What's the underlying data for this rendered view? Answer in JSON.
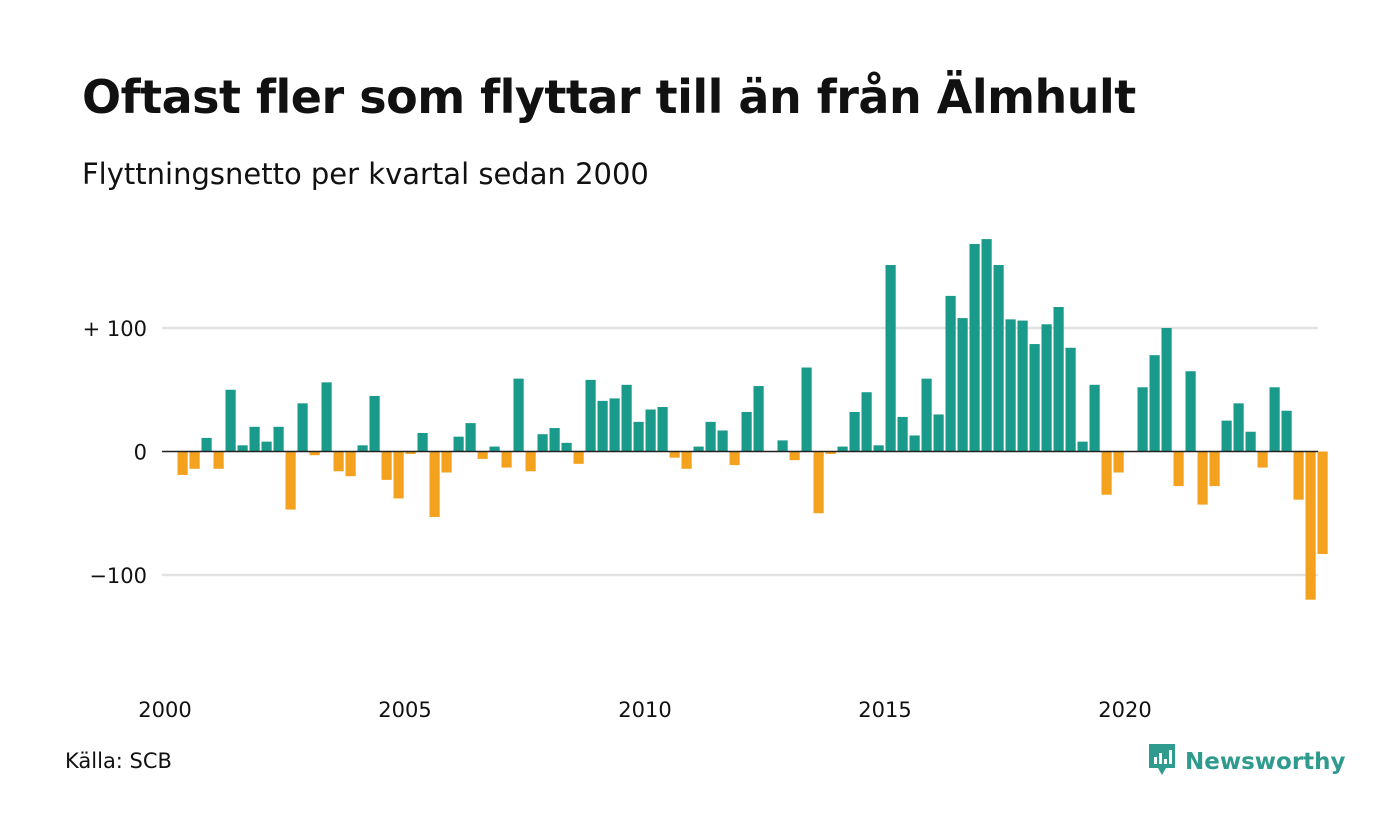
{
  "title": "Oftast fler som flyttar till än från Älmhult",
  "subtitle": "Flyttningsnetto per kvartal sedan 2000",
  "source": "Källa: SCB",
  "brand": {
    "name": "Newsworthy",
    "icon": "newsworthy-logo-icon",
    "color": "#2f9b8e"
  },
  "colors": {
    "positive": "#1a9a8a",
    "negative": "#f4a11e",
    "grid": "#e2e2e2",
    "zero": "#222222"
  },
  "chart_data": {
    "type": "bar",
    "x_start": 2000,
    "x_step": 0.25,
    "xticks": [
      2000,
      2005,
      2010,
      2015,
      2020
    ],
    "xtick_labels": [
      "2000",
      "2005",
      "2010",
      "2015",
      "2020"
    ],
    "yticks": [
      100,
      0,
      -100
    ],
    "ytick_labels": [
      "+ 100",
      "0",
      "−100"
    ],
    "ylim": [
      -150,
      180
    ],
    "grid": true,
    "values": [
      -19,
      -14,
      11,
      -14,
      50,
      5,
      20,
      8,
      20,
      -47,
      39,
      -3,
      56,
      -16,
      -20,
      5,
      45,
      -23,
      -38,
      -2,
      15,
      -53,
      -17,
      12,
      23,
      -6,
      4,
      -13,
      59,
      -16,
      14,
      19,
      7,
      -10,
      58,
      41,
      43,
      54,
      24,
      34,
      36,
      -5,
      -14,
      4,
      24,
      17,
      -11,
      32,
      53,
      0,
      9,
      -7,
      68,
      -50,
      -2,
      4,
      32,
      48,
      5,
      151,
      28,
      13,
      59,
      30,
      126,
      108,
      168,
      172,
      151,
      107,
      106,
      87,
      103,
      117,
      84,
      8,
      54,
      -35,
      -17,
      0,
      52,
      78,
      100,
      -28,
      65,
      -43,
      -28,
      25,
      39,
      16,
      -13,
      52,
      33,
      -39,
      -120,
      -83
    ]
  }
}
